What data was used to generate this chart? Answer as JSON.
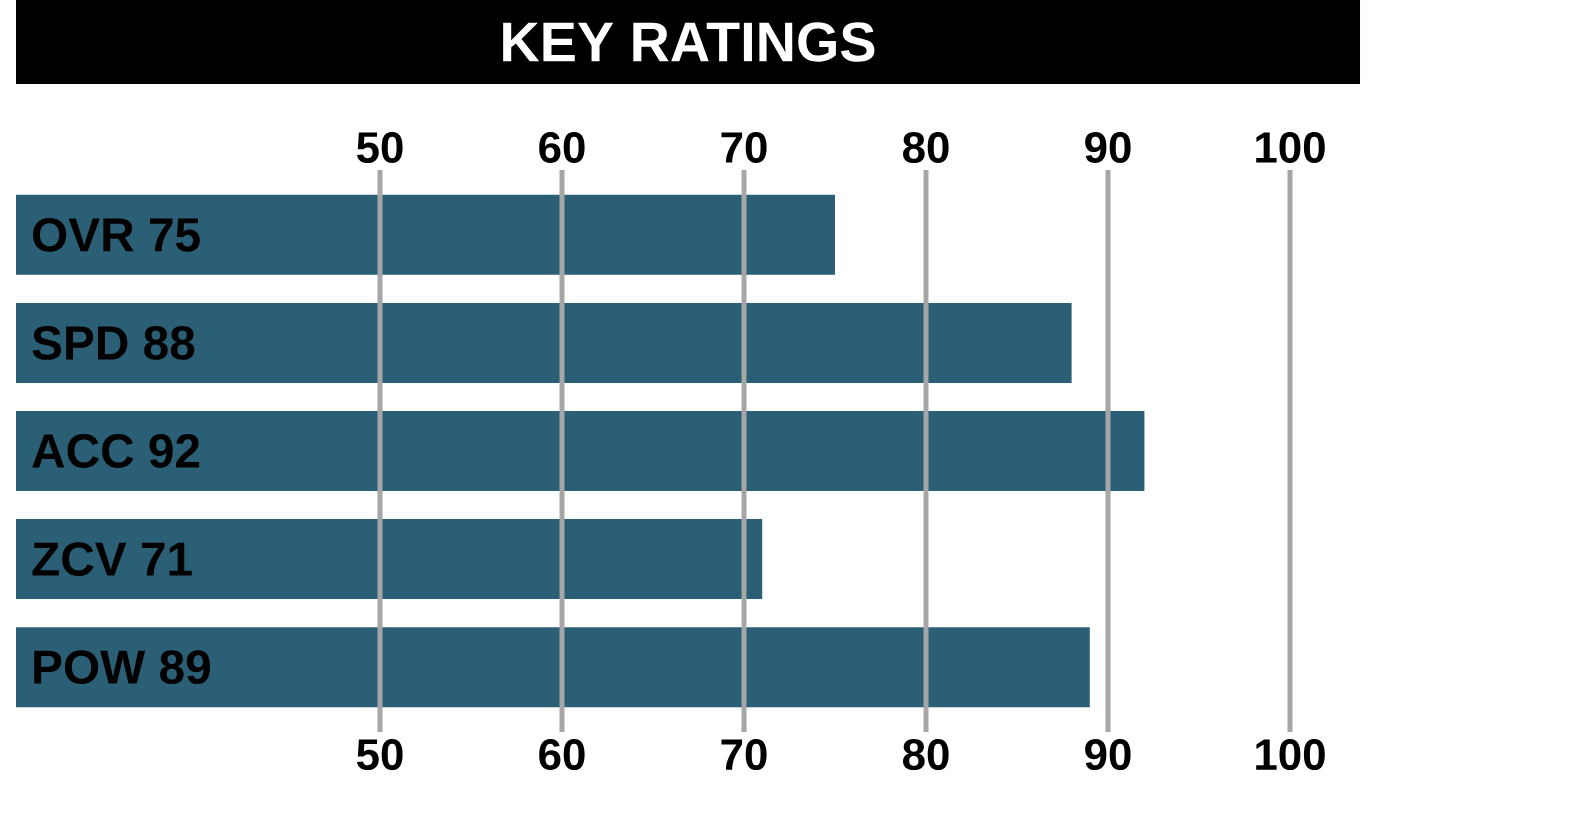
{
  "chart_data": {
    "type": "bar",
    "orientation": "horizontal",
    "title": "KEY RATINGS",
    "categories": [
      "OVR 75",
      "SPD 88",
      "ACC 92",
      "ZCV 71",
      "POW 89"
    ],
    "values": [
      75,
      88,
      92,
      71,
      89
    ],
    "color": "#2b5f75",
    "xlim": [
      30,
      100
    ],
    "xticks": [
      50,
      60,
      70,
      80,
      90,
      100
    ],
    "x2lim": [
      30,
      100
    ],
    "x2ticks": [
      50,
      60,
      70,
      80,
      90,
      100
    ],
    "grid": "x"
  }
}
